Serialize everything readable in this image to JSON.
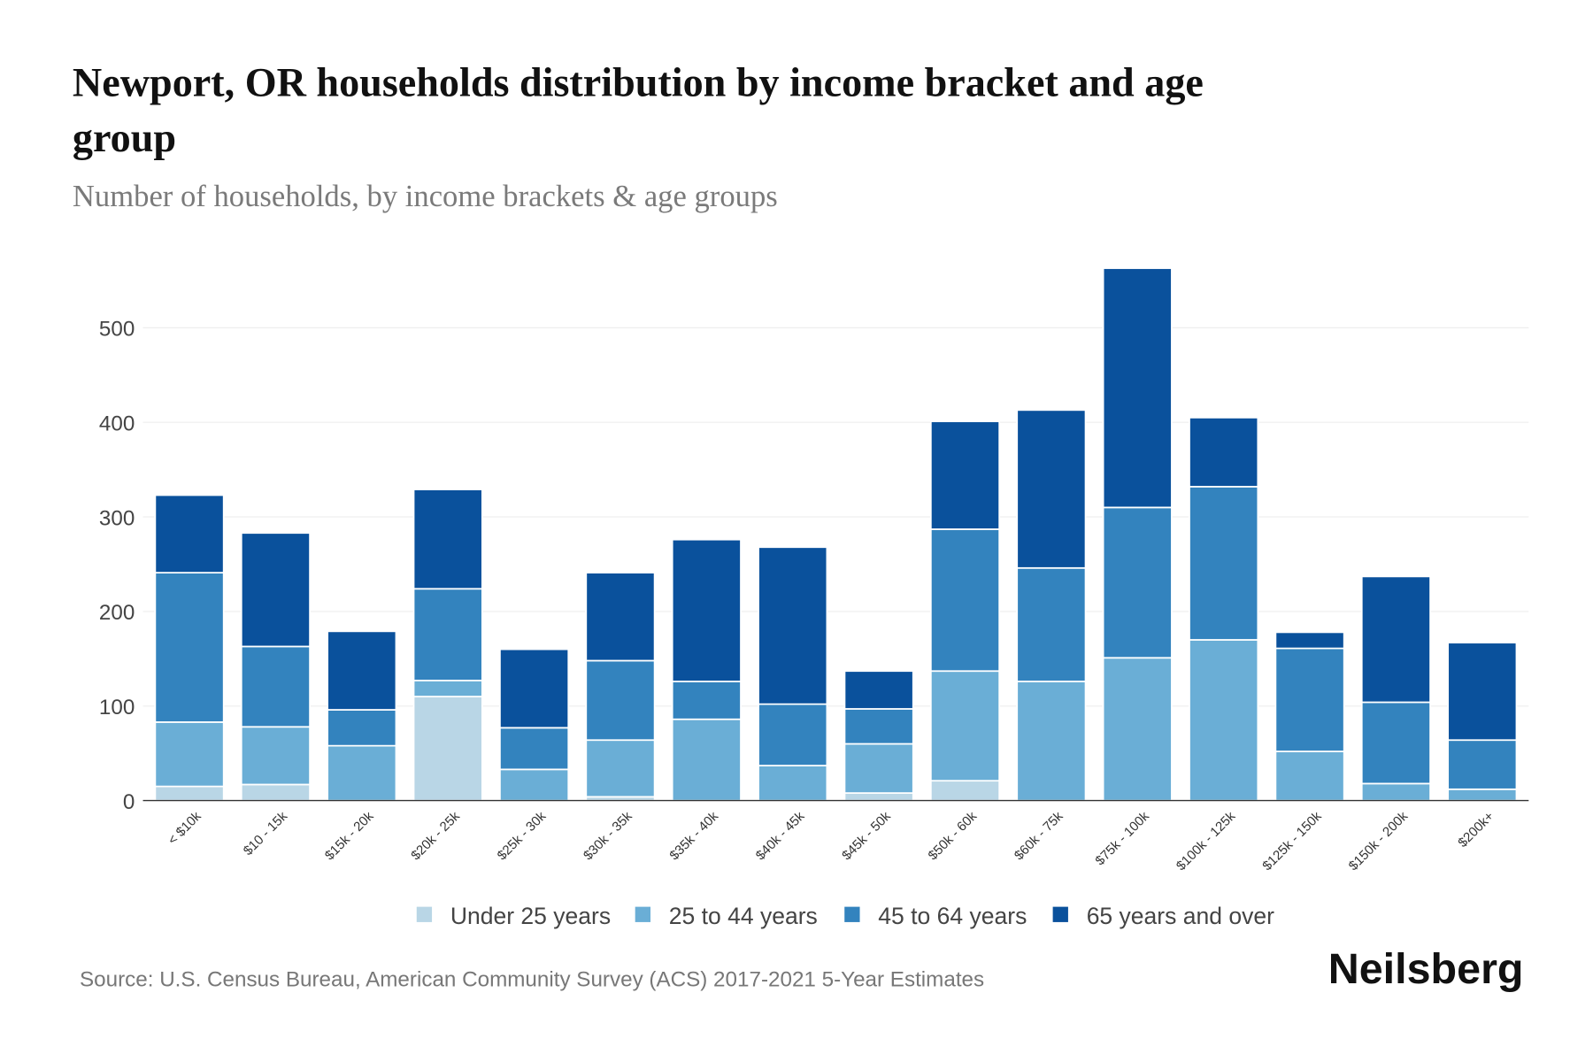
{
  "chart_data": {
    "type": "bar",
    "stacked": true,
    "title": "Newport, OR households distribution by income bracket and age group",
    "title_lines": [
      "Newport, OR households distribution by income bracket and age",
      "group"
    ],
    "subtitle": "Number of households, by income brackets & age groups",
    "xlabel": "",
    "ylabel": "",
    "ylim": [
      0,
      570
    ],
    "yticks": [
      "0",
      "100",
      "200",
      "300",
      "400",
      "500"
    ],
    "grid": true,
    "legend_placement": "bottom",
    "categories": [
      "< $10k",
      "$10 - 15k",
      "$15k - 20k",
      "$20k - 25k",
      "$25k - 30k",
      "$30k - 35k",
      "$35k - 40k",
      "$40k - 45k",
      "$45k - 50k",
      "$50k - 60k",
      "$60k - 75k",
      "$75k - 100k",
      "$100k - 125k",
      "$125k - 150k",
      "$150k - 200k",
      "$200k+"
    ],
    "series": [
      {
        "name": "Under 25 years",
        "color": "#b9d6e6",
        "values": [
          15,
          17,
          0,
          110,
          0,
          4,
          0,
          0,
          8,
          21,
          0,
          0,
          0,
          0,
          0,
          0
        ]
      },
      {
        "name": "25 to 44 years",
        "color": "#6aaed6",
        "values": [
          68,
          61,
          58,
          17,
          33,
          60,
          86,
          37,
          52,
          116,
          126,
          151,
          170,
          52,
          18,
          12
        ]
      },
      {
        "name": "45 to 64 years",
        "color": "#3383be",
        "values": [
          158,
          85,
          38,
          97,
          44,
          84,
          40,
          65,
          37,
          150,
          120,
          159,
          162,
          109,
          86,
          52
        ]
      },
      {
        "name": "65 years and over",
        "color": "#0a519c",
        "values": [
          82,
          120,
          83,
          105,
          83,
          93,
          150,
          166,
          40,
          114,
          167,
          253,
          73,
          17,
          133,
          103
        ]
      }
    ]
  },
  "footer": {
    "source": "Source: U.S. Census Bureau, American Community Survey (ACS) 2017-2021 5-Year Estimates",
    "brand": "Neilsberg"
  }
}
